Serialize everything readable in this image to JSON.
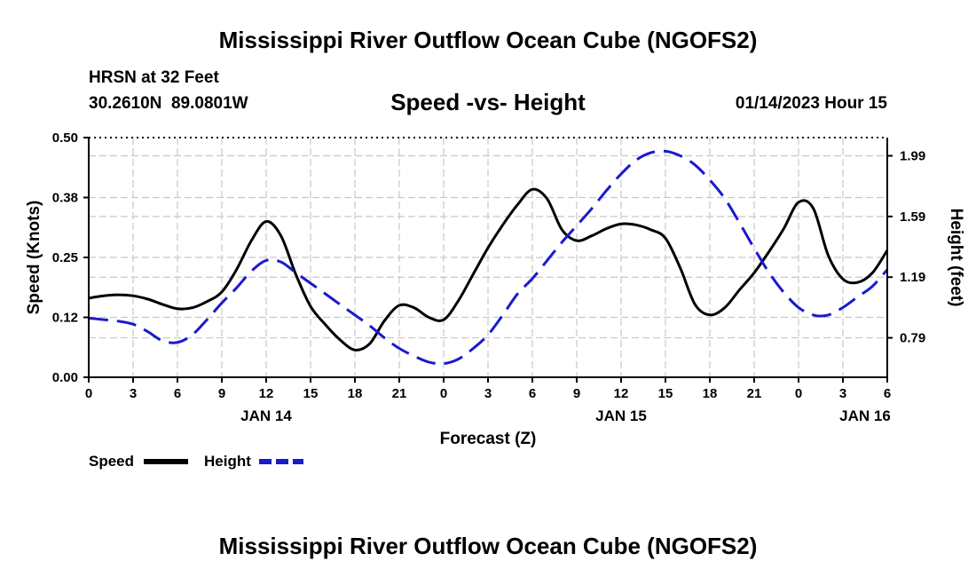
{
  "header": {
    "title": "Mississippi River Outflow Ocean Cube (NGOFS2)",
    "station": "HRSN at 32 Feet",
    "coords": "30.2610N  89.0801W",
    "subtitle": "Speed -vs- Height",
    "datetime": "01/14/2023 Hour 15"
  },
  "footer": {
    "title": "Mississippi River Outflow Ocean Cube (NGOFS2)"
  },
  "legend": {
    "speed_label": "Speed",
    "height_label": "Height"
  },
  "colors": {
    "speed": "#000000",
    "height": "#1a1acc",
    "grid": "#c8c8c8"
  },
  "chart_data": {
    "type": "line",
    "title": "Speed -vs- Height",
    "xlabel": "Forecast (Z)",
    "ylabel": "Speed (Knots)",
    "y2label": "Height (feet)",
    "xlim": [
      0,
      54
    ],
    "ylim": [
      0,
      0.5
    ],
    "y2lim": [
      0.53,
      2.11
    ],
    "x_ticks": [
      0,
      3,
      6,
      9,
      12,
      15,
      18,
      21,
      24,
      27,
      30,
      33,
      36,
      39,
      42,
      45,
      48,
      51,
      54
    ],
    "x_tick_labels": [
      "0",
      "3",
      "6",
      "9",
      "12",
      "15",
      "18",
      "21",
      "0",
      "3",
      "6",
      "9",
      "12",
      "15",
      "18",
      "21",
      "0",
      "3",
      "6"
    ],
    "date_labels": [
      {
        "x": 12,
        "label": "JAN 14"
      },
      {
        "x": 36,
        "label": "JAN 15"
      },
      {
        "x": 52.5,
        "label": "JAN 16"
      }
    ],
    "y_ticks": [
      0.0,
      0.125,
      0.25,
      0.375,
      0.5
    ],
    "y_tick_labels": [
      "0.00",
      "0.12",
      "0.25",
      "0.38",
      "0.50"
    ],
    "y2_ticks": [
      0.79,
      1.19,
      1.59,
      1.99
    ],
    "y2_tick_labels": [
      "0.79",
      "1.19",
      "1.59",
      "1.99"
    ],
    "series": [
      {
        "name": "Speed",
        "axis": "left",
        "style": "solid",
        "x": [
          0,
          1,
          2,
          3,
          4,
          5,
          6,
          7,
          8,
          9,
          10,
          11,
          12,
          13,
          14,
          15,
          16,
          17,
          18,
          19,
          20,
          21,
          22,
          23,
          24,
          25,
          26,
          27,
          28,
          29,
          30,
          31,
          32,
          33,
          34,
          35,
          36,
          37,
          38,
          39,
          40,
          41,
          42,
          43,
          44,
          45,
          46,
          47,
          48,
          49,
          50,
          51,
          52,
          53,
          54
        ],
        "values": [
          0.165,
          0.17,
          0.172,
          0.17,
          0.163,
          0.152,
          0.143,
          0.145,
          0.158,
          0.178,
          0.225,
          0.285,
          0.325,
          0.295,
          0.215,
          0.148,
          0.11,
          0.078,
          0.057,
          0.07,
          0.118,
          0.15,
          0.145,
          0.125,
          0.12,
          0.16,
          0.215,
          0.27,
          0.318,
          0.36,
          0.392,
          0.372,
          0.308,
          0.285,
          0.295,
          0.31,
          0.32,
          0.318,
          0.308,
          0.29,
          0.228,
          0.152,
          0.13,
          0.145,
          0.182,
          0.218,
          0.262,
          0.31,
          0.365,
          0.352,
          0.255,
          0.205,
          0.198,
          0.218,
          0.265
        ]
      },
      {
        "name": "Height",
        "axis": "right",
        "style": "dashed",
        "x": [
          0,
          1,
          2,
          3,
          4,
          5,
          6,
          7,
          8,
          9,
          10,
          11,
          12,
          13,
          14,
          15,
          16,
          17,
          18,
          19,
          20,
          21,
          22,
          23,
          24,
          25,
          26,
          27,
          28,
          29,
          30,
          31,
          32,
          33,
          34,
          35,
          36,
          37,
          38,
          39,
          40,
          41,
          42,
          43,
          44,
          45,
          46,
          47,
          48,
          49,
          50,
          51,
          52,
          53,
          54
        ],
        "values": [
          0.92,
          0.91,
          0.9,
          0.88,
          0.83,
          0.77,
          0.76,
          0.81,
          0.91,
          1.02,
          1.12,
          1.23,
          1.3,
          1.29,
          1.22,
          1.15,
          1.08,
          1.01,
          0.94,
          0.87,
          0.79,
          0.72,
          0.67,
          0.63,
          0.62,
          0.65,
          0.72,
          0.81,
          0.94,
          1.08,
          1.18,
          1.3,
          1.42,
          1.53,
          1.64,
          1.76,
          1.87,
          1.96,
          2.01,
          2.02,
          1.99,
          1.93,
          1.83,
          1.71,
          1.55,
          1.38,
          1.22,
          1.09,
          0.99,
          0.94,
          0.94,
          0.99,
          1.06,
          1.13,
          1.24
        ]
      }
    ]
  }
}
